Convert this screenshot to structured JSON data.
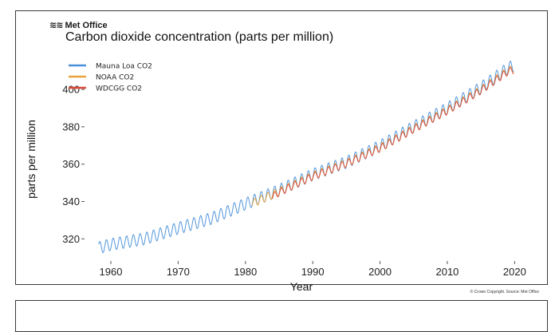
{
  "logo": {
    "text": "Met Office",
    "icon": "met-office-logo-icon"
  },
  "chart_data": {
    "type": "line",
    "title": "Carbon dioxide concentration (parts per million)",
    "xlabel": "Year",
    "ylabel": "parts per million",
    "xlim": [
      1956.8,
      2021.5
    ],
    "ylim": [
      309,
      418
    ],
    "xticks": [
      1960,
      1970,
      1980,
      1990,
      2000,
      2010,
      2020
    ],
    "yticks": [
      320,
      340,
      360,
      380,
      400
    ],
    "grid": false,
    "legend_position": "top-left",
    "series": [
      {
        "name": "Mauna Loa CO2",
        "color": "#4a90d9",
        "start": 1958.2,
        "end": 2019.9,
        "trend": [
          [
            1958,
            315
          ],
          [
            1960,
            317
          ],
          [
            1965,
            320
          ],
          [
            1970,
            325.7
          ],
          [
            1975,
            331
          ],
          [
            1980,
            338.7
          ],
          [
            1985,
            346
          ],
          [
            1990,
            354.4
          ],
          [
            1995,
            361
          ],
          [
            2000,
            369.7
          ],
          [
            2005,
            380
          ],
          [
            2010,
            389.9
          ],
          [
            2015,
            401
          ],
          [
            2019,
            411.4
          ],
          [
            2020,
            413
          ]
        ],
        "seasonal_amplitude": 3.2
      },
      {
        "name": "NOAA CO2",
        "color": "#e8a33a",
        "start": 1981.0,
        "end": 2019.9,
        "trend": [
          [
            1981,
            339
          ],
          [
            1985,
            345.3
          ],
          [
            1990,
            353.7
          ],
          [
            1995,
            360.5
          ],
          [
            2000,
            368.8
          ],
          [
            2005,
            379
          ],
          [
            2010,
            388.8
          ],
          [
            2015,
            399.7
          ],
          [
            2019,
            410
          ],
          [
            2020,
            411
          ]
        ],
        "seasonal_amplitude": 2.2
      },
      {
        "name": "WDCGG CO2",
        "color": "#d94b3a",
        "start": 1984.0,
        "end": 2019.9,
        "trend": [
          [
            1984,
            342.5
          ],
          [
            1985,
            344.8
          ],
          [
            1990,
            353.4
          ],
          [
            1995,
            360.3
          ],
          [
            2000,
            368.5
          ],
          [
            2005,
            378.7
          ],
          [
            2010,
            388.5
          ],
          [
            2015,
            399.4
          ],
          [
            2019,
            409.5
          ],
          [
            2020,
            410.5
          ]
        ],
        "seasonal_amplitude": 1.9
      }
    ],
    "credit": "© Crown Copyright. Source: Met Office"
  }
}
